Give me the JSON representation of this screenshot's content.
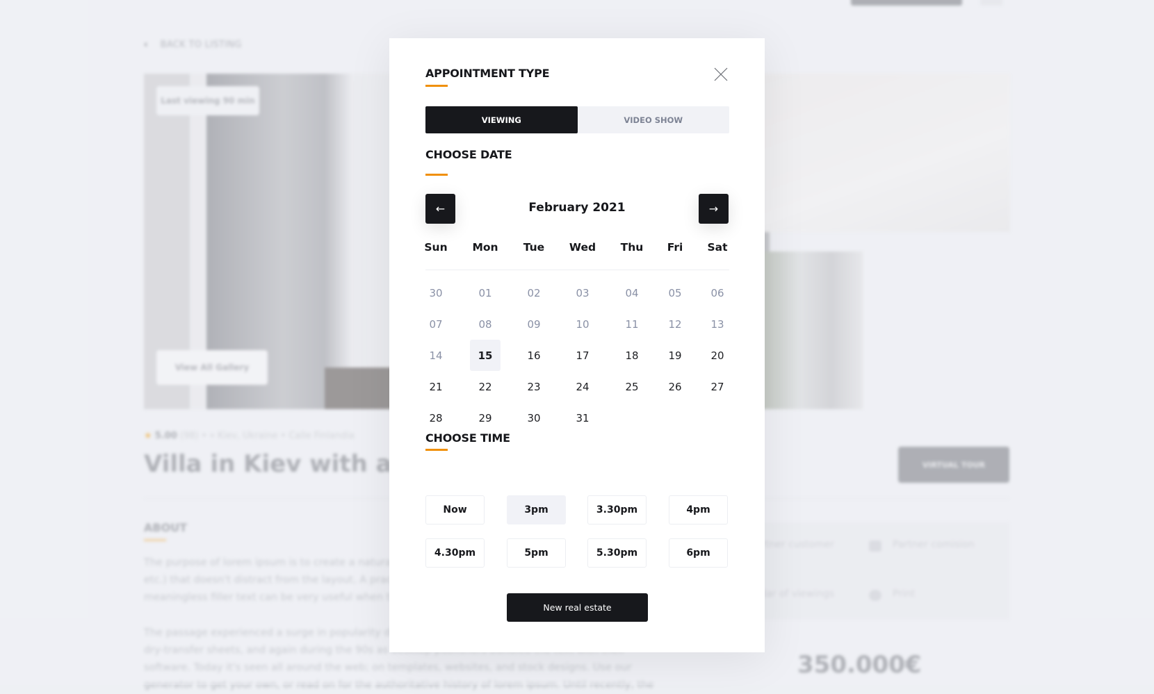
{
  "background": {
    "back_label": "BACK TO LISTING",
    "last_viewing": "Last viewing 90 min",
    "gallery_button": "View All Gallery",
    "rating": "5.00",
    "reviews": "(98)",
    "location": "Kiev, Ukraine",
    "street": "Calle Finlandia",
    "title": "Villa in Kiev with a beautiful view",
    "virtual_tour": "VIRTUAL TOUR",
    "about_heading": "ABOUT",
    "paragraph1": [
      "The purpose of lorem ipsum is to create a natural looking block of text (sentence, paragraph, page,",
      "etc.) that doesn't distract from the layout. A practice not without controversy, laying out pages with",
      "meaningless filler text can be very useful when the focus is meant to be on design, not content."
    ],
    "paragraph2": [
      "The passage experienced a surge in popularity during the 1960s when Letraset used it on their",
      "dry-transfer sheets, and again during the 90s as desktop publishers bundled the text with their",
      "software. Today it's seen all around the web; on templates, websites, and stock designs. Use our",
      "generator to get your own, or read on for the authoritative history of lorem ipsum. Until recently, the"
    ],
    "features": [
      "Partner customer",
      "Partner comision",
      "Calendar of viewings",
      "Print"
    ],
    "price": "350.000€"
  },
  "modal": {
    "appointment_heading": "APPOINTMENT TYPE",
    "tabs": [
      {
        "label": "VIEWING",
        "active": true
      },
      {
        "label": "VIDEO SHOW",
        "active": false
      }
    ],
    "date_heading": "CHOOSE DATE",
    "month_label": "February 2021",
    "prev_icon": "arrow-left-icon",
    "next_icon": "arrow-right-icon",
    "weekdays": [
      "Sun",
      "Mon",
      "Tue",
      "Wed",
      "Thu",
      "Fri",
      "Sat"
    ],
    "weeks": [
      [
        "30",
        "01",
        "02",
        "03",
        "04",
        "05",
        "06"
      ],
      [
        "07",
        "08",
        "09",
        "10",
        "11",
        "12",
        "13"
      ],
      [
        "14",
        "15",
        "16",
        "17",
        "18",
        "19",
        "20"
      ],
      [
        "21",
        "22",
        "23",
        "24",
        "25",
        "26",
        "27"
      ],
      [
        "28",
        "29",
        "30",
        "31"
      ]
    ],
    "disabled_until": "14",
    "selected_date": "15",
    "time_heading": "CHOOSE TIME",
    "times": [
      "Now",
      "3pm",
      "3.30pm",
      "4pm",
      "4.30pm",
      "5pm",
      "5.30pm",
      "6pm"
    ],
    "selected_time": "3pm",
    "submit_label": "New real estate"
  },
  "colors": {
    "accent": "#f0900a",
    "dark": "#17181c",
    "muted_date": "#8a91a6",
    "selected_bg": "#f1f2f7"
  }
}
